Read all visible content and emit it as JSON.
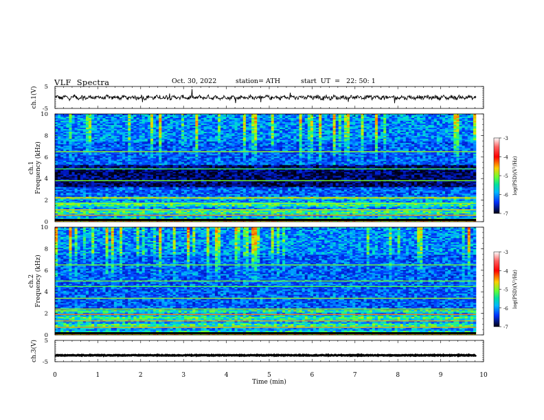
{
  "header": {
    "title": "VLF  Spectra",
    "date": "Oct. 30, 2022",
    "station": "station= ATH",
    "start_ut": "start  UT  =   22: 50: 1"
  },
  "chart_data": [
    {
      "type": "line",
      "panel": "ch1-waveform",
      "ylabel": "ch.1(V)",
      "ylim": [
        -5,
        5
      ],
      "yticks": [
        "5",
        "-5"
      ],
      "xlim": [
        0,
        10
      ],
      "series_color": "#000000"
    },
    {
      "type": "heatmap",
      "panel": "ch1-spectrogram",
      "ylabel_line1": "ch.1",
      "ylabel_line2": "Frequency  (kHz)",
      "ylim": [
        0,
        10
      ],
      "yticks": [
        "0",
        "2",
        "4",
        "6",
        "8",
        "10"
      ],
      "xlim": [
        0,
        10
      ],
      "colorbar": {
        "label": "log(PSD)(V²/Hz)",
        "range": [
          -7,
          -3
        ],
        "ticks": [
          "-3",
          "-4",
          "-5",
          "-6",
          "-7"
        ]
      }
    },
    {
      "type": "heatmap",
      "panel": "ch2-spectrogram",
      "ylabel_line1": "ch.2",
      "ylabel_line2": "Frequency  (kHz)",
      "ylim": [
        0,
        10
      ],
      "yticks": [
        "0",
        "2",
        "4",
        "6",
        "8",
        "10"
      ],
      "xlim": [
        0,
        10
      ],
      "colorbar": {
        "label": "log(PSD)(V²/Hz)",
        "range": [
          -7,
          -3
        ],
        "ticks": [
          "-3",
          "-4",
          "-5",
          "-6",
          "-7"
        ]
      }
    },
    {
      "type": "line",
      "panel": "ch3-waveform",
      "ylabel": "ch.3(V)",
      "ylim": [
        -5,
        5
      ],
      "yticks": [
        "5",
        "-5"
      ],
      "xlim": [
        0,
        10
      ],
      "xlabel": "Time  (min)",
      "xticks": [
        "0",
        "1",
        "2",
        "3",
        "4",
        "5",
        "6",
        "7",
        "8",
        "9",
        "10"
      ],
      "series_color": "#000000"
    }
  ]
}
